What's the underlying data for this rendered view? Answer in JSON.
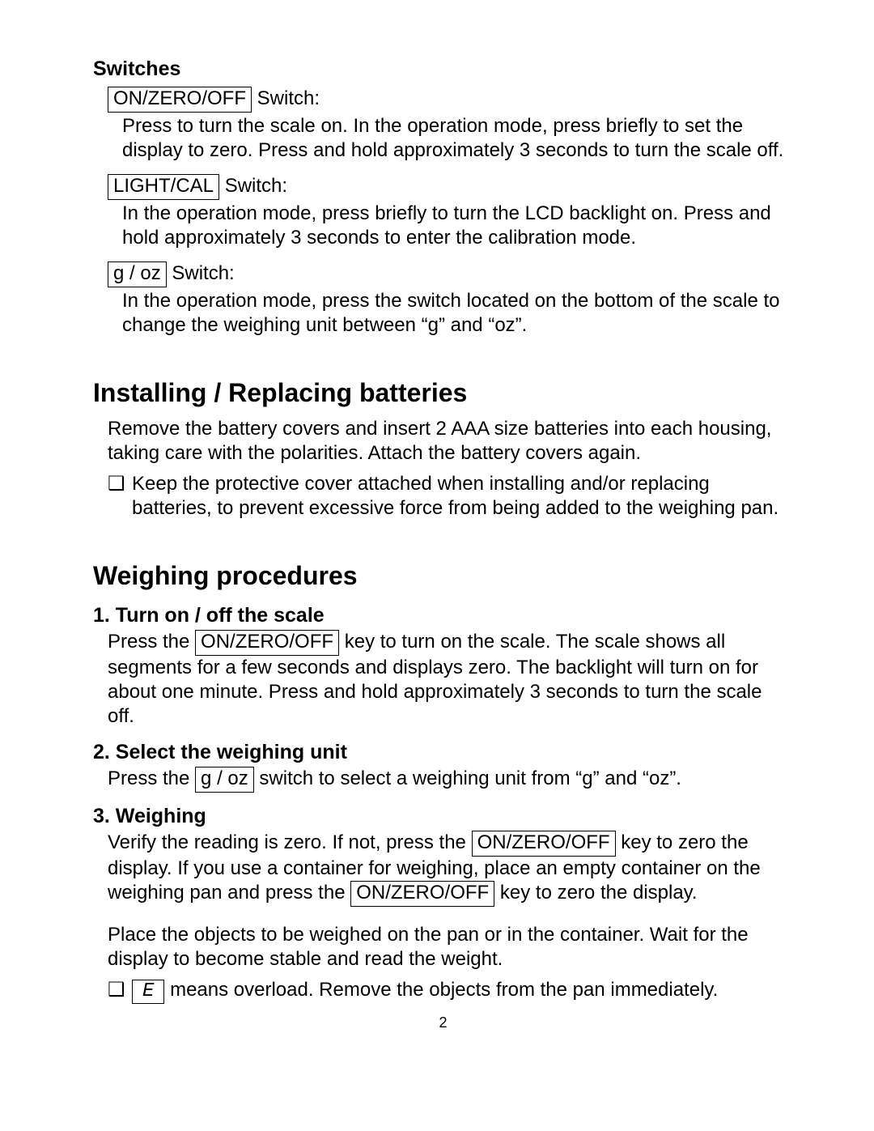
{
  "switches_heading": "Switches",
  "switch1": {
    "label": "ON/ZERO/OFF",
    "suffix": " Switch:",
    "desc": "Press to turn the scale on. In the operation mode, press briefly to set the display to zero. Press and hold approximately 3 seconds to turn the scale off."
  },
  "switch2": {
    "label": "LIGHT/CAL",
    "suffix": " Switch:",
    "desc": "In the operation mode, press briefly to turn the LCD backlight on. Press and hold approximately 3 seconds to enter the calibration mode."
  },
  "switch3": {
    "label": "g / oz",
    "suffix": " Switch:",
    "desc": "In the operation mode, press the switch located on the bottom of the scale to change the weighing unit between “g” and “oz”."
  },
  "batteries_heading": "Installing / Replacing batteries",
  "batteries_body": "Remove the battery covers and insert 2 AAA size batteries into each housing, taking care with the polarities. Attach the battery covers again.",
  "batteries_note": "Keep the protective cover attached when installing and/or replacing batteries, to prevent excessive force from being added to the weighing pan.",
  "weighing_heading": "Weighing procedures",
  "step1_heading": "1. Turn on / off the scale",
  "step1_pre": "Press the ",
  "step1_key": "ON/ZERO/OFF",
  "step1_post": " key to turn on the scale. The scale shows all segments for a few seconds and displays zero. The backlight will turn on for about one minute. Press and hold approximately 3 seconds to turn the scale off.",
  "step2_heading": "2. Select the weighing unit",
  "step2_pre": "Press the ",
  "step2_key": "g / oz",
  "step2_post": " switch to select a weighing unit from “g” and “oz”.",
  "step3_heading": "3. Weighing",
  "step3_p1_a": "Verify the reading is zero. If not, press the ",
  "step3_key1": "ON/ZERO/OFF",
  "step3_p1_b": " key to zero the display. If you use a container for weighing, place an empty container on the weighing pan and press the ",
  "step3_key2": "ON/ZERO/OFF",
  "step3_p1_c": " key to zero the display.",
  "step3_p2": "Place the objects to be weighed on the pan or in the container. Wait for the display to become stable and read the weight.",
  "step3_overload_sym": "E",
  "step3_overload_text": " means overload. Remove the objects from the pan immediately.",
  "bullet_marker": "❑",
  "page_number": "2"
}
